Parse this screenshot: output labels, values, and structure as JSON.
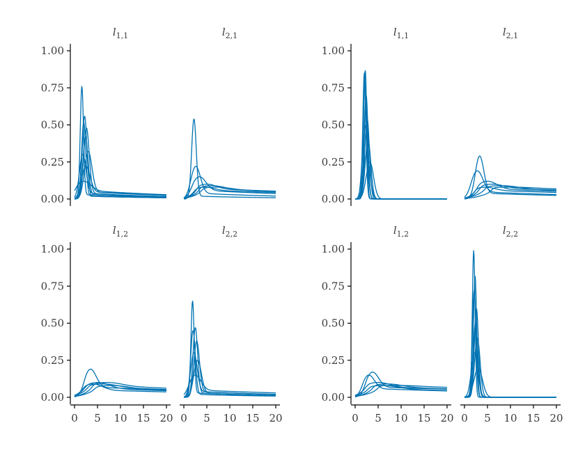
{
  "colors": {
    "curve": "#0072B2",
    "axis": "#000000",
    "text": "#3a3a3a"
  },
  "chart_data": {
    "type": "line",
    "grid": false,
    "legend": "none",
    "xlabel": "",
    "ylabel": "",
    "xlim": [
      0,
      20
    ],
    "ylim": [
      0,
      1
    ],
    "x_ticks": [
      0,
      5,
      10,
      15,
      20
    ],
    "y_ticks": [
      0,
      0.25,
      0.5,
      0.75,
      1
    ],
    "x_tick_labels": [
      "0",
      "5",
      "10",
      "15",
      "20"
    ],
    "y_tick_labels": [
      "0.00",
      "0.25",
      "0.50",
      "0.75",
      "1.00"
    ],
    "groups": [
      {
        "panels": [
          {
            "title": {
              "base": "l",
              "sub": "1,1"
            },
            "curves": [
              {
                "peak": 0.76,
                "mode": 1.6,
                "spread": 0.35,
                "tail_level": 0.03,
                "tail_decay": 0.05
              },
              {
                "peak": 0.56,
                "mode": 2.2,
                "spread": 0.5,
                "tail_level": 0.02,
                "tail_decay": 0.05
              },
              {
                "peak": 0.48,
                "mode": 2.6,
                "spread": 0.6,
                "tail_level": 0.04,
                "tail_decay": 0.05
              },
              {
                "peak": 0.52,
                "mode": 2.0,
                "spread": 0.45,
                "tail_level": 0.02,
                "tail_decay": 0.05
              },
              {
                "peak": 0.32,
                "mode": 3.0,
                "spread": 0.8,
                "tail_level": 0.05,
                "tail_decay": 0.04
              },
              {
                "peak": 0.3,
                "mode": 1.8,
                "spread": 0.7,
                "tail_level": 0.04,
                "tail_decay": 0.05
              },
              {
                "peak": 0.42,
                "mode": 2.4,
                "spread": 0.55,
                "tail_level": 0.03,
                "tail_decay": 0.05
              },
              {
                "peak": 0.22,
                "mode": 2.5,
                "spread": 0.9,
                "tail_level": 0.05,
                "tail_decay": 0.04
              },
              {
                "peak": 0.12,
                "mode": 2.0,
                "spread": 1.5,
                "tail_level": 0.06,
                "tail_decay": 0.04
              }
            ]
          },
          {
            "title": {
              "base": "l",
              "sub": "2,1"
            },
            "curves": [
              {
                "peak": 0.54,
                "mode": 2.2,
                "spread": 0.5,
                "tail_level": 0.02,
                "tail_decay": 0.05
              },
              {
                "peak": 0.22,
                "mode": 2.6,
                "spread": 1.0,
                "tail_level": 0.04,
                "tail_decay": 0.04
              },
              {
                "peak": 0.15,
                "mode": 3.4,
                "spread": 1.4,
                "tail_level": 0.06,
                "tail_decay": 0.03
              },
              {
                "peak": 0.1,
                "mode": 5.0,
                "spread": 2.0,
                "tail_level": 0.07,
                "tail_decay": 0.02
              },
              {
                "peak": 0.09,
                "mode": 6.0,
                "spread": 2.5,
                "tail_level": 0.07,
                "tail_decay": 0.02
              },
              {
                "peak": 0.08,
                "mode": 7.0,
                "spread": 3.0,
                "tail_level": 0.065,
                "tail_decay": 0.02
              },
              {
                "peak": 0.08,
                "mode": 4.5,
                "spread": 2.0,
                "tail_level": 0.06,
                "tail_decay": 0.02
              }
            ]
          },
          {
            "title": {
              "base": "l",
              "sub": "1,2"
            },
            "curves": [
              {
                "peak": 0.19,
                "mode": 3.5,
                "spread": 1.2,
                "tail_level": 0.07,
                "tail_decay": 0.02
              },
              {
                "peak": 0.1,
                "mode": 5.0,
                "spread": 2.5,
                "tail_level": 0.06,
                "tail_decay": 0.02
              },
              {
                "peak": 0.09,
                "mode": 6.0,
                "spread": 3.0,
                "tail_level": 0.07,
                "tail_decay": 0.02
              },
              {
                "peak": 0.09,
                "mode": 4.0,
                "spread": 2.0,
                "tail_level": 0.05,
                "tail_decay": 0.02
              },
              {
                "peak": 0.08,
                "mode": 8.0,
                "spread": 3.5,
                "tail_level": 0.06,
                "tail_decay": 0.02
              },
              {
                "peak": 0.1,
                "mode": 7.0,
                "spread": 3.0,
                "tail_level": 0.08,
                "tail_decay": 0.02
              }
            ]
          },
          {
            "title": {
              "base": "l",
              "sub": "2,2"
            },
            "curves": [
              {
                "peak": 0.65,
                "mode": 1.9,
                "spread": 0.35,
                "tail_level": 0.03,
                "tail_decay": 0.05
              },
              {
                "peak": 0.47,
                "mode": 2.5,
                "spread": 0.5,
                "tail_level": 0.03,
                "tail_decay": 0.05
              },
              {
                "peak": 0.45,
                "mode": 2.0,
                "spread": 0.5,
                "tail_level": 0.02,
                "tail_decay": 0.05
              },
              {
                "peak": 0.38,
                "mode": 2.8,
                "spread": 0.6,
                "tail_level": 0.04,
                "tail_decay": 0.04
              },
              {
                "peak": 0.3,
                "mode": 2.2,
                "spread": 0.7,
                "tail_level": 0.04,
                "tail_decay": 0.04
              },
              {
                "peak": 0.25,
                "mode": 3.0,
                "spread": 0.8,
                "tail_level": 0.03,
                "tail_decay": 0.05
              },
              {
                "peak": 0.15,
                "mode": 2.5,
                "spread": 1.2,
                "tail_level": 0.05,
                "tail_decay": 0.03
              }
            ]
          }
        ]
      },
      {
        "panels": [
          {
            "title": {
              "base": "l",
              "sub": "1,1"
            },
            "curves": [
              {
                "peak": 0.87,
                "mode": 2.2,
                "spread": 0.32,
                "tail_level": 0.0,
                "tail_decay": 0.1
              },
              {
                "peak": 0.85,
                "mode": 2.0,
                "spread": 0.35,
                "tail_level": 0.0,
                "tail_decay": 0.1
              },
              {
                "peak": 0.7,
                "mode": 2.4,
                "spread": 0.4,
                "tail_level": 0.0,
                "tail_decay": 0.1
              },
              {
                "peak": 0.6,
                "mode": 2.3,
                "spread": 0.45,
                "tail_level": 0.0,
                "tail_decay": 0.1
              },
              {
                "peak": 0.55,
                "mode": 2.6,
                "spread": 0.5,
                "tail_level": 0.0,
                "tail_decay": 0.1
              },
              {
                "peak": 0.5,
                "mode": 2.1,
                "spread": 0.55,
                "tail_level": 0.0,
                "tail_decay": 0.1
              },
              {
                "peak": 0.4,
                "mode": 2.8,
                "spread": 0.6,
                "tail_level": 0.0,
                "tail_decay": 0.1
              },
              {
                "peak": 0.3,
                "mode": 2.5,
                "spread": 0.7,
                "tail_level": 0.0,
                "tail_decay": 0.1
              },
              {
                "peak": 0.25,
                "mode": 3.2,
                "spread": 0.8,
                "tail_level": 0.0,
                "tail_decay": 0.1
              }
            ]
          },
          {
            "title": {
              "base": "l",
              "sub": "2,1"
            },
            "curves": [
              {
                "peak": 0.29,
                "mode": 3.3,
                "spread": 0.9,
                "tail_level": 0.04,
                "tail_decay": 0.03
              },
              {
                "peak": 0.19,
                "mode": 2.8,
                "spread": 1.2,
                "tail_level": 0.05,
                "tail_decay": 0.03
              },
              {
                "peak": 0.12,
                "mode": 5.0,
                "spread": 2.0,
                "tail_level": 0.07,
                "tail_decay": 0.02
              },
              {
                "peak": 0.1,
                "mode": 6.0,
                "spread": 2.5,
                "tail_level": 0.075,
                "tail_decay": 0.015
              },
              {
                "peak": 0.09,
                "mode": 8.0,
                "spread": 3.5,
                "tail_level": 0.07,
                "tail_decay": 0.015
              },
              {
                "peak": 0.08,
                "mode": 10.0,
                "spread": 4.0,
                "tail_level": 0.075,
                "tail_decay": 0.01
              },
              {
                "peak": 0.08,
                "mode": 4.5,
                "spread": 2.0,
                "tail_level": 0.06,
                "tail_decay": 0.02
              }
            ]
          },
          {
            "title": {
              "base": "l",
              "sub": "1,2"
            },
            "curves": [
              {
                "peak": 0.17,
                "mode": 3.8,
                "spread": 1.3,
                "tail_level": 0.07,
                "tail_decay": 0.015
              },
              {
                "peak": 0.15,
                "mode": 3.0,
                "spread": 1.2,
                "tail_level": 0.06,
                "tail_decay": 0.02
              },
              {
                "peak": 0.1,
                "mode": 5.0,
                "spread": 2.5,
                "tail_level": 0.07,
                "tail_decay": 0.015
              },
              {
                "peak": 0.09,
                "mode": 7.0,
                "spread": 3.0,
                "tail_level": 0.07,
                "tail_decay": 0.015
              },
              {
                "peak": 0.08,
                "mode": 9.0,
                "spread": 4.0,
                "tail_level": 0.075,
                "tail_decay": 0.01
              },
              {
                "peak": 0.08,
                "mode": 6.0,
                "spread": 3.0,
                "tail_level": 0.06,
                "tail_decay": 0.02
              }
            ]
          },
          {
            "title": {
              "base": "l",
              "sub": "2,2"
            },
            "curves": [
              {
                "peak": 0.99,
                "mode": 2.0,
                "spread": 0.3,
                "tail_level": 0.0,
                "tail_decay": 0.1
              },
              {
                "peak": 0.82,
                "mode": 2.3,
                "spread": 0.35,
                "tail_level": 0.0,
                "tail_decay": 0.1
              },
              {
                "peak": 0.72,
                "mode": 2.1,
                "spread": 0.4,
                "tail_level": 0.0,
                "tail_decay": 0.1
              },
              {
                "peak": 0.6,
                "mode": 2.6,
                "spread": 0.45,
                "tail_level": 0.0,
                "tail_decay": 0.1
              },
              {
                "peak": 0.5,
                "mode": 2.4,
                "spread": 0.5,
                "tail_level": 0.0,
                "tail_decay": 0.1
              },
              {
                "peak": 0.4,
                "mode": 2.8,
                "spread": 0.6,
                "tail_level": 0.0,
                "tail_decay": 0.1
              },
              {
                "peak": 0.3,
                "mode": 2.2,
                "spread": 0.7,
                "tail_level": 0.0,
                "tail_decay": 0.1
              },
              {
                "peak": 0.2,
                "mode": 3.0,
                "spread": 0.9,
                "tail_level": 0.0,
                "tail_decay": 0.1
              }
            ]
          }
        ]
      }
    ]
  }
}
